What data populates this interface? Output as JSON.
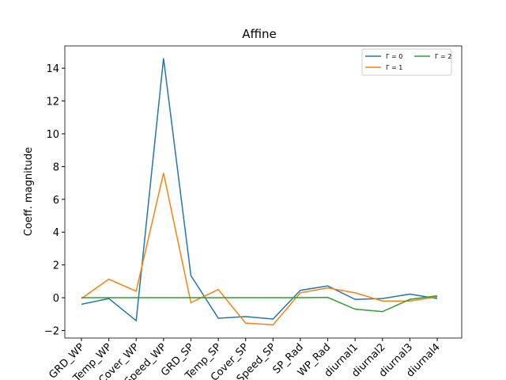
{
  "chart_data": {
    "type": "line",
    "title": "Affine",
    "y_label": "Coeff. magnitude",
    "categories": [
      "GRD_WP",
      "Temp_WP",
      "Cover_WP",
      "Speed_WP",
      "GRD_SP",
      "Temp_SP",
      "Cover_SP",
      "Speed_SP",
      "SP_Rad",
      "WP_Rad",
      "diurnal1",
      "diurnal2",
      "diurnal3",
      "diurnal4"
    ],
    "series": [
      {
        "name": "Γ = 0",
        "color": "#1f77b4",
        "values": [
          -0.4,
          -0.05,
          -1.4,
          14.6,
          1.35,
          -1.25,
          -1.15,
          -1.3,
          0.45,
          0.72,
          -0.1,
          -0.05,
          0.22,
          -0.05
        ]
      },
      {
        "name": "Γ = 1",
        "color": "#ff7f0e",
        "values": [
          -0.05,
          1.13,
          0.4,
          7.6,
          -0.3,
          0.5,
          -1.55,
          -1.65,
          0.3,
          0.6,
          0.3,
          -0.2,
          -0.2,
          0.05
        ]
      },
      {
        "name": "Γ = 2",
        "color": "#2ca02c",
        "values": [
          0,
          0,
          0,
          0,
          0,
          0,
          0,
          0,
          0,
          0.02,
          -0.7,
          -0.85,
          -0.1,
          0.12
        ]
      }
    ],
    "ylim": [
      -2.46,
      15.36
    ],
    "yticks": [
      {
        "value": -2,
        "label": "−2"
      },
      0,
      2,
      4,
      6,
      8,
      10,
      12,
      14
    ],
    "legend": "upper right"
  }
}
